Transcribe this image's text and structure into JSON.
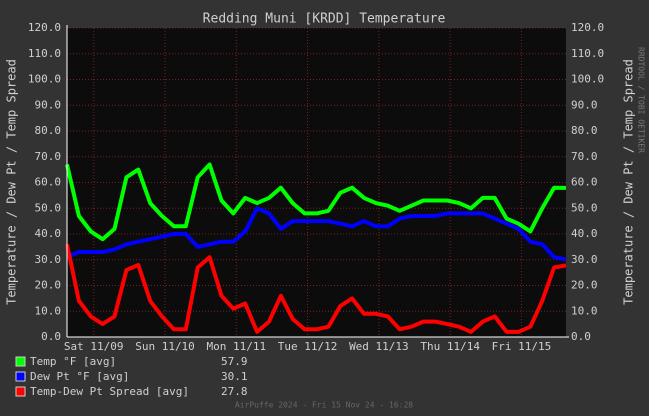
{
  "chart_data": {
    "type": "line",
    "title": "Redding Muni [KRDD] Temperature",
    "ylabel": "Temperature / Dew Pt / Temp Spread",
    "watermark": "RRDTOOL / TOBI OETIKER",
    "footer": "AirPuffe 2024 - Fri 15 Nov 24 - 16:28",
    "x": [
      0,
      4,
      8,
      12,
      16,
      20,
      24,
      28,
      32,
      36,
      40,
      44,
      48,
      52,
      56,
      60,
      64,
      68,
      72,
      76,
      80,
      84,
      88,
      92,
      96,
      100,
      104,
      108,
      112,
      116,
      120,
      124,
      128,
      132,
      136,
      140,
      144,
      148,
      152,
      156,
      160,
      164,
      168
    ],
    "xlim": [
      0,
      168
    ],
    "xticks": [
      {
        "value": 9,
        "label": "Sat 11/09"
      },
      {
        "value": 33,
        "label": "Sun 11/10"
      },
      {
        "value": 57,
        "label": "Mon 11/11"
      },
      {
        "value": 81,
        "label": "Tue 11/12"
      },
      {
        "value": 105,
        "label": "Wed 11/13"
      },
      {
        "value": 129,
        "label": "Thu 11/14"
      },
      {
        "value": 153,
        "label": "Fri 11/15"
      }
    ],
    "ylim": [
      0,
      120
    ],
    "yticks": [
      {
        "value": 0,
        "label": "0.0"
      },
      {
        "value": 10,
        "label": "10.0"
      },
      {
        "value": 20,
        "label": "20.0"
      },
      {
        "value": 30,
        "label": "30.0"
      },
      {
        "value": 40,
        "label": "40.0"
      },
      {
        "value": 50,
        "label": "50.0"
      },
      {
        "value": 60,
        "label": "60.0"
      },
      {
        "value": 70,
        "label": "70.0"
      },
      {
        "value": 80,
        "label": "80.0"
      },
      {
        "value": 90,
        "label": "90.0"
      },
      {
        "value": 100,
        "label": "100.0"
      },
      {
        "value": 110,
        "label": "110.0"
      },
      {
        "value": 120,
        "label": "120.0"
      }
    ],
    "grid": true,
    "series": [
      {
        "name": "Temp °F [avg]",
        "color": "#00ff00",
        "current": 57.9,
        "values": [
          67,
          47,
          41,
          38,
          42,
          62,
          65,
          52,
          47,
          43,
          43,
          62,
          67,
          53,
          48,
          54,
          52,
          54,
          58,
          52,
          48,
          48,
          49,
          56,
          58,
          54,
          52,
          51,
          49,
          51,
          53,
          53,
          53,
          52,
          50,
          54,
          54,
          46,
          44,
          41,
          50,
          58,
          57.9
        ]
      },
      {
        "name": "Dew Pt °F [avg]",
        "color": "#0000ff",
        "current": 30.1,
        "values": [
          31,
          33,
          33,
          33,
          34,
          36,
          37,
          38,
          39,
          40,
          40,
          35,
          36,
          37,
          37,
          41,
          50,
          48,
          42,
          45,
          45,
          45,
          45,
          44,
          43,
          45,
          43,
          43,
          46,
          47,
          47,
          47,
          48,
          48,
          48,
          48,
          46,
          44,
          42,
          37,
          36,
          31,
          30.1
        ]
      },
      {
        "name": "Temp-Dew Pt Spread [avg]",
        "color": "#ff0000",
        "current": 27.8,
        "values": [
          36,
          14,
          8,
          5,
          8,
          26,
          28,
          14,
          8,
          3,
          3,
          27,
          31,
          16,
          11,
          13,
          2,
          6,
          16,
          7,
          3,
          3,
          4,
          12,
          15,
          9,
          9,
          8,
          3,
          4,
          6,
          6,
          5,
          4,
          2,
          6,
          8,
          2,
          2,
          4,
          14,
          27,
          27.8
        ]
      }
    ]
  }
}
